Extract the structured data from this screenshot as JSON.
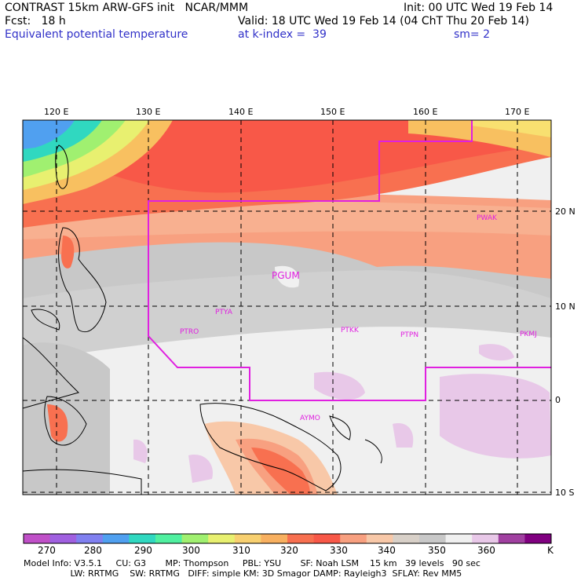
{
  "header": {
    "line1_left": "CONTRAST 15km ARW-GFS init   NCAR/MMM",
    "line1_right": "Init: 00 UTC Wed 19 Feb 14",
    "line2_left": "Fcst:   18 h",
    "line2_right": "Valid: 18 UTC Wed 19 Feb 14 (04 ChT Thu 20 Feb 14)",
    "line3_left": "Equivalent potential temperature",
    "line3_mid": "at k-index =  39",
    "line3_right": "sm= 2"
  },
  "map": {
    "lon_labels": [
      "120 E",
      "130 E",
      "140 E",
      "150 E",
      "160 E",
      "170 E"
    ],
    "lat_labels": [
      "20 N",
      "10 N",
      "0",
      "10 S"
    ],
    "stations": [
      {
        "id": "PGUM",
        "label": "PGUM"
      },
      {
        "id": "PWAK",
        "label": "PWAK"
      },
      {
        "id": "PTYA",
        "label": "PTYA"
      },
      {
        "id": "PTRO",
        "label": "PTRO"
      },
      {
        "id": "PTKK",
        "label": "PTKK"
      },
      {
        "id": "PTPN",
        "label": "PTPN"
      },
      {
        "id": "PKMJ",
        "label": "PKMJ"
      },
      {
        "id": "AYMO",
        "label": "AYMO"
      }
    ],
    "region_color": "#e020e0"
  },
  "colorbar": {
    "labels": [
      "270",
      "280",
      "290",
      "300",
      "310",
      "320",
      "330",
      "340",
      "350",
      "360"
    ],
    "unit": "K",
    "colors": [
      "#c050c8",
      "#a060e0",
      "#8080f0",
      "#50a0f0",
      "#30d8c0",
      "#50f0a0",
      "#a0f070",
      "#e8f070",
      "#f8d070",
      "#f8b060",
      "#f87050",
      "#f85848",
      "#f8a080",
      "#f8c8a8",
      "#d8d0c8",
      "#c8c8c8",
      "#f0f0f0",
      "#e8c8e8",
      "#a040a0",
      "#800080"
    ]
  },
  "footer": {
    "line1": "Model Info: V3.5.1     CU: G3       MP: Thompson     PBL: YSU       SF: Noah LSM    15 km   39 levels   90 sec",
    "line2": "                 LW: RRTMG    SW: RRTMG   DIFF: simple KM: 3D Smagor DAMP: Rayleigh3  SFLAY: Rev MM5"
  }
}
